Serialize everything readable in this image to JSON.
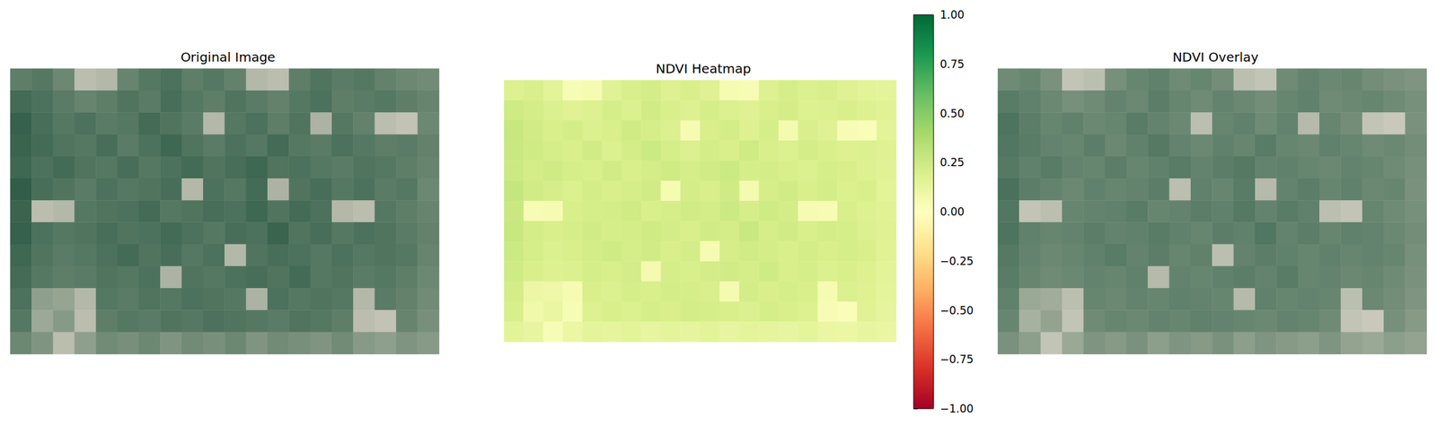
{
  "chart_data": [
    {
      "type": "image",
      "title": "Original Image"
    },
    {
      "type": "heatmap",
      "title": "NDVI Heatmap",
      "tick_labels": false,
      "cells": [
        [
          0.18,
          0.2,
          0.15,
          0.04,
          0.05,
          0.16,
          0.2,
          0.22,
          0.18,
          0.2,
          0.17,
          0.05,
          0.04,
          0.18,
          0.21,
          0.19,
          0.2,
          0.17,
          0.15,
          0.14
        ],
        [
          0.24,
          0.22,
          0.19,
          0.16,
          0.18,
          0.21,
          0.19,
          0.23,
          0.2,
          0.18,
          0.21,
          0.19,
          0.17,
          0.2,
          0.22,
          0.18,
          0.19,
          0.2,
          0.18,
          0.16
        ],
        [
          0.27,
          0.23,
          0.2,
          0.22,
          0.19,
          0.2,
          0.24,
          0.21,
          0.19,
          0.05,
          0.2,
          0.22,
          0.18,
          0.21,
          0.06,
          0.2,
          0.17,
          0.04,
          0.03,
          0.15
        ],
        [
          0.26,
          0.24,
          0.21,
          0.2,
          0.23,
          0.19,
          0.22,
          0.25,
          0.21,
          0.19,
          0.22,
          0.2,
          0.24,
          0.2,
          0.19,
          0.22,
          0.2,
          0.18,
          0.19,
          0.17
        ],
        [
          0.25,
          0.22,
          0.24,
          0.21,
          0.2,
          0.23,
          0.2,
          0.22,
          0.24,
          0.21,
          0.23,
          0.25,
          0.21,
          0.22,
          0.2,
          0.19,
          0.21,
          0.2,
          0.18,
          0.16
        ],
        [
          0.28,
          0.23,
          0.21,
          0.19,
          0.22,
          0.2,
          0.21,
          0.23,
          0.05,
          0.22,
          0.2,
          0.24,
          0.06,
          0.21,
          0.23,
          0.2,
          0.22,
          0.19,
          0.2,
          0.15
        ],
        [
          0.26,
          0.04,
          0.05,
          0.2,
          0.21,
          0.22,
          0.24,
          0.2,
          0.21,
          0.23,
          0.22,
          0.25,
          0.21,
          0.24,
          0.22,
          0.05,
          0.04,
          0.2,
          0.18,
          0.16
        ],
        [
          0.27,
          0.22,
          0.2,
          0.21,
          0.23,
          0.21,
          0.22,
          0.24,
          0.22,
          0.2,
          0.23,
          0.22,
          0.26,
          0.21,
          0.23,
          0.2,
          0.22,
          0.21,
          0.19,
          0.17
        ],
        [
          0.25,
          0.21,
          0.19,
          0.2,
          0.22,
          0.24,
          0.21,
          0.23,
          0.2,
          0.22,
          0.05,
          0.21,
          0.23,
          0.22,
          0.2,
          0.22,
          0.2,
          0.21,
          0.2,
          0.16
        ],
        [
          0.24,
          0.2,
          0.18,
          0.19,
          0.21,
          0.2,
          0.22,
          0.06,
          0.21,
          0.2,
          0.22,
          0.23,
          0.21,
          0.24,
          0.2,
          0.21,
          0.19,
          0.2,
          0.18,
          0.15
        ],
        [
          0.22,
          0.1,
          0.09,
          0.05,
          0.2,
          0.19,
          0.21,
          0.2,
          0.22,
          0.21,
          0.2,
          0.06,
          0.22,
          0.2,
          0.21,
          0.2,
          0.05,
          0.19,
          0.17,
          0.14
        ],
        [
          0.2,
          0.08,
          0.11,
          0.04,
          0.18,
          0.2,
          0.19,
          0.21,
          0.2,
          0.22,
          0.21,
          0.2,
          0.19,
          0.21,
          0.2,
          0.18,
          0.04,
          0.03,
          0.16,
          0.13
        ],
        [
          0.15,
          0.12,
          0.04,
          0.1,
          0.14,
          0.13,
          0.15,
          0.12,
          0.14,
          0.13,
          0.15,
          0.12,
          0.14,
          0.13,
          0.12,
          0.14,
          0.11,
          0.1,
          0.12,
          0.11
        ]
      ],
      "colorbar_range": [
        -1,
        1
      ],
      "colorbar_ticks": [
        {
          "value": -1,
          "label": "−1.00"
        },
        {
          "value": -0.75,
          "label": "−0.75"
        },
        {
          "value": -0.5,
          "label": "−0.50"
        },
        {
          "value": -0.25,
          "label": "−0.25"
        },
        {
          "value": 0,
          "label": "0.00"
        },
        {
          "value": 0.25,
          "label": "0.25"
        },
        {
          "value": 0.5,
          "label": "0.50"
        },
        {
          "value": 0.75,
          "label": "0.75"
        },
        {
          "value": 1,
          "label": "1.00"
        }
      ]
    },
    {
      "type": "overlay",
      "title": "NDVI Overlay"
    }
  ]
}
